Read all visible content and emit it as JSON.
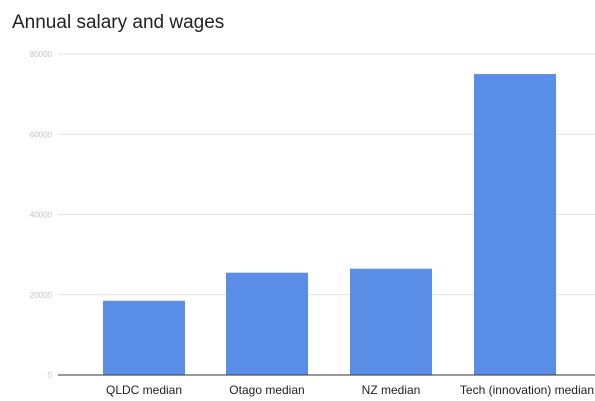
{
  "chart_data": {
    "type": "bar",
    "title": "Annual salary and wages",
    "categories": [
      "QLDC median",
      "Otago median",
      "NZ median",
      "Tech (innovation) median"
    ],
    "values": [
      18500,
      25500,
      26500,
      75000
    ],
    "y_ticks": [
      0,
      20000,
      40000,
      60000,
      80000
    ],
    "y_tick_labels": [
      "0",
      "20000",
      "40000",
      "60000",
      "80000"
    ],
    "ylim": [
      0,
      80000
    ],
    "xlabel": "",
    "ylabel": "",
    "grid": true,
    "legend": "none",
    "bar_color": "#5b8ee6"
  }
}
